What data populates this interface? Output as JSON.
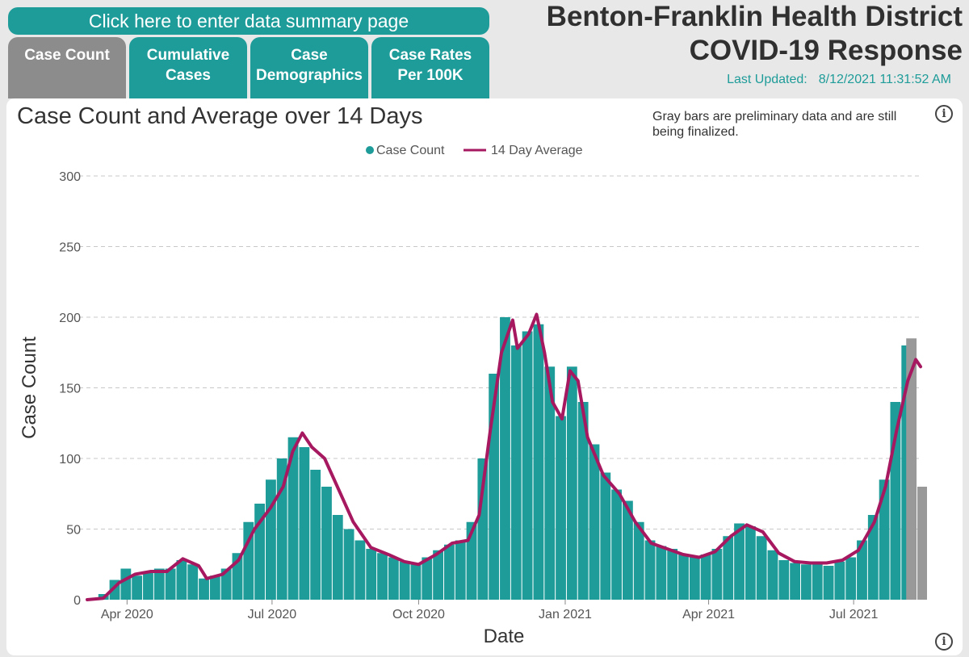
{
  "summary_button": "Click here to enter data summary page",
  "tabs": [
    {
      "label": "Case Count",
      "active": true
    },
    {
      "label": "Cumulative\nCases",
      "active": false
    },
    {
      "label": "Case\nDemographics",
      "active": false
    },
    {
      "label": "Case Rates\nPer 100K",
      "active": false
    }
  ],
  "header": {
    "line1": "Benton-Franklin Health District",
    "line2": "COVID-19 Response",
    "last_updated_label": "Last Updated:",
    "last_updated_value": "8/12/2021 11:31:52 AM"
  },
  "note": "Gray bars are preliminary data and are still being finalized.",
  "colors": {
    "accent": "#1e9c99",
    "bar": "#1e9c99",
    "preliminary_bar": "#999999",
    "average_line": "#a6185f",
    "active_tab": "#8c8c8c"
  },
  "icons": [
    "info-icon"
  ],
  "chart_data": {
    "type": "bar",
    "title": "Case Count and Average over 14 Days",
    "xlabel": "Date",
    "ylabel": "Case Count",
    "ylim": [
      0,
      300
    ],
    "yticks": [
      0,
      50,
      100,
      150,
      200,
      250,
      300
    ],
    "grid": true,
    "legend_position": "top",
    "x_range": [
      "2020-03-07",
      "2021-08-12"
    ],
    "x_ticks": [
      {
        "label": "Apr 2020",
        "date": "2020-04-01"
      },
      {
        "label": "Jul 2020",
        "date": "2020-07-01"
      },
      {
        "label": "Oct 2020",
        "date": "2020-10-01"
      },
      {
        "label": "Jan 2021",
        "date": "2021-01-01"
      },
      {
        "label": "Apr 2021",
        "date": "2021-04-01"
      },
      {
        "label": "Jul 2021",
        "date": "2021-07-01"
      }
    ],
    "series": [
      {
        "name": "Case Count",
        "kind": "bar",
        "weekly_average": [
          {
            "week_start": "2020-03-07",
            "value": 1
          },
          {
            "week_start": "2020-03-14",
            "value": 4
          },
          {
            "week_start": "2020-03-21",
            "value": 14
          },
          {
            "week_start": "2020-03-28",
            "value": 22
          },
          {
            "week_start": "2020-04-04",
            "value": 17
          },
          {
            "week_start": "2020-04-11",
            "value": 20
          },
          {
            "week_start": "2020-04-18",
            "value": 22
          },
          {
            "week_start": "2020-04-25",
            "value": 22
          },
          {
            "week_start": "2020-05-02",
            "value": 28
          },
          {
            "week_start": "2020-05-09",
            "value": 25
          },
          {
            "week_start": "2020-05-16",
            "value": 15
          },
          {
            "week_start": "2020-05-23",
            "value": 17
          },
          {
            "week_start": "2020-05-30",
            "value": 22
          },
          {
            "week_start": "2020-06-06",
            "value": 33
          },
          {
            "week_start": "2020-06-13",
            "value": 55
          },
          {
            "week_start": "2020-06-20",
            "value": 68
          },
          {
            "week_start": "2020-06-27",
            "value": 85
          },
          {
            "week_start": "2020-07-04",
            "value": 100
          },
          {
            "week_start": "2020-07-11",
            "value": 115
          },
          {
            "week_start": "2020-07-18",
            "value": 108
          },
          {
            "week_start": "2020-07-25",
            "value": 92
          },
          {
            "week_start": "2020-08-01",
            "value": 80
          },
          {
            "week_start": "2020-08-08",
            "value": 60
          },
          {
            "week_start": "2020-08-15",
            "value": 50
          },
          {
            "week_start": "2020-08-22",
            "value": 42
          },
          {
            "week_start": "2020-08-29",
            "value": 36
          },
          {
            "week_start": "2020-09-05",
            "value": 33
          },
          {
            "week_start": "2020-09-12",
            "value": 30
          },
          {
            "week_start": "2020-09-19",
            "value": 27
          },
          {
            "week_start": "2020-09-26",
            "value": 26
          },
          {
            "week_start": "2020-10-03",
            "value": 30
          },
          {
            "week_start": "2020-10-10",
            "value": 35
          },
          {
            "week_start": "2020-10-17",
            "value": 39
          },
          {
            "week_start": "2020-10-24",
            "value": 42
          },
          {
            "week_start": "2020-10-31",
            "value": 55
          },
          {
            "week_start": "2020-11-07",
            "value": 100
          },
          {
            "week_start": "2020-11-14",
            "value": 160
          },
          {
            "week_start": "2020-11-21",
            "value": 200
          },
          {
            "week_start": "2020-11-28",
            "value": 180
          },
          {
            "week_start": "2020-12-05",
            "value": 190
          },
          {
            "week_start": "2020-12-12",
            "value": 195
          },
          {
            "week_start": "2020-12-19",
            "value": 165
          },
          {
            "week_start": "2020-12-26",
            "value": 130
          },
          {
            "week_start": "2021-01-02",
            "value": 165
          },
          {
            "week_start": "2021-01-09",
            "value": 140
          },
          {
            "week_start": "2021-01-16",
            "value": 110
          },
          {
            "week_start": "2021-01-23",
            "value": 90
          },
          {
            "week_start": "2021-01-30",
            "value": 78
          },
          {
            "week_start": "2021-02-06",
            "value": 70
          },
          {
            "week_start": "2021-02-13",
            "value": 55
          },
          {
            "week_start": "2021-02-20",
            "value": 42
          },
          {
            "week_start": "2021-02-27",
            "value": 38
          },
          {
            "week_start": "2021-03-06",
            "value": 36
          },
          {
            "week_start": "2021-03-13",
            "value": 32
          },
          {
            "week_start": "2021-03-20",
            "value": 30
          },
          {
            "week_start": "2021-03-27",
            "value": 32
          },
          {
            "week_start": "2021-04-03",
            "value": 36
          },
          {
            "week_start": "2021-04-10",
            "value": 45
          },
          {
            "week_start": "2021-04-17",
            "value": 54
          },
          {
            "week_start": "2021-04-24",
            "value": 52
          },
          {
            "week_start": "2021-05-01",
            "value": 45
          },
          {
            "week_start": "2021-05-08",
            "value": 35
          },
          {
            "week_start": "2021-05-15",
            "value": 28
          },
          {
            "week_start": "2021-05-22",
            "value": 26
          },
          {
            "week_start": "2021-05-29",
            "value": 25
          },
          {
            "week_start": "2021-06-05",
            "value": 26
          },
          {
            "week_start": "2021-06-12",
            "value": 24
          },
          {
            "week_start": "2021-06-19",
            "value": 27
          },
          {
            "week_start": "2021-06-26",
            "value": 30
          },
          {
            "week_start": "2021-07-03",
            "value": 42
          },
          {
            "week_start": "2021-07-10",
            "value": 60
          },
          {
            "week_start": "2021-07-17",
            "value": 85
          },
          {
            "week_start": "2021-07-24",
            "value": 140
          },
          {
            "week_start": "2021-07-31",
            "value": 180
          }
        ],
        "preliminary_weekly_average": [
          {
            "week_start": "2021-08-03",
            "value": 185
          },
          {
            "week_start": "2021-08-10",
            "value": 80
          }
        ]
      },
      {
        "name": "14 Day Average",
        "kind": "line",
        "points": [
          {
            "date": "2020-03-07",
            "value": 0
          },
          {
            "date": "2020-03-17",
            "value": 1
          },
          {
            "date": "2020-03-27",
            "value": 12
          },
          {
            "date": "2020-04-06",
            "value": 18
          },
          {
            "date": "2020-04-16",
            "value": 20
          },
          {
            "date": "2020-04-26",
            "value": 20
          },
          {
            "date": "2020-05-06",
            "value": 29
          },
          {
            "date": "2020-05-16",
            "value": 24
          },
          {
            "date": "2020-05-21",
            "value": 15
          },
          {
            "date": "2020-05-31",
            "value": 18
          },
          {
            "date": "2020-06-10",
            "value": 28
          },
          {
            "date": "2020-06-20",
            "value": 50
          },
          {
            "date": "2020-06-30",
            "value": 65
          },
          {
            "date": "2020-07-08",
            "value": 80
          },
          {
            "date": "2020-07-14",
            "value": 105
          },
          {
            "date": "2020-07-20",
            "value": 118
          },
          {
            "date": "2020-07-26",
            "value": 108
          },
          {
            "date": "2020-08-03",
            "value": 100
          },
          {
            "date": "2020-08-11",
            "value": 80
          },
          {
            "date": "2020-08-21",
            "value": 55
          },
          {
            "date": "2020-09-01",
            "value": 37
          },
          {
            "date": "2020-09-12",
            "value": 32
          },
          {
            "date": "2020-09-22",
            "value": 27
          },
          {
            "date": "2020-10-01",
            "value": 25
          },
          {
            "date": "2020-10-12",
            "value": 32
          },
          {
            "date": "2020-10-22",
            "value": 40
          },
          {
            "date": "2020-11-01",
            "value": 42
          },
          {
            "date": "2020-11-08",
            "value": 60
          },
          {
            "date": "2020-11-15",
            "value": 120
          },
          {
            "date": "2020-11-22",
            "value": 175
          },
          {
            "date": "2020-11-29",
            "value": 198
          },
          {
            "date": "2020-12-02",
            "value": 178
          },
          {
            "date": "2020-12-09",
            "value": 188
          },
          {
            "date": "2020-12-14",
            "value": 202
          },
          {
            "date": "2020-12-19",
            "value": 175
          },
          {
            "date": "2020-12-24",
            "value": 140
          },
          {
            "date": "2020-12-30",
            "value": 128
          },
          {
            "date": "2021-01-04",
            "value": 162
          },
          {
            "date": "2021-01-09",
            "value": 155
          },
          {
            "date": "2021-01-15",
            "value": 115
          },
          {
            "date": "2021-01-25",
            "value": 88
          },
          {
            "date": "2021-02-04",
            "value": 75
          },
          {
            "date": "2021-02-14",
            "value": 55
          },
          {
            "date": "2021-02-24",
            "value": 40
          },
          {
            "date": "2021-03-06",
            "value": 36
          },
          {
            "date": "2021-03-16",
            "value": 32
          },
          {
            "date": "2021-03-26",
            "value": 30
          },
          {
            "date": "2021-04-05",
            "value": 34
          },
          {
            "date": "2021-04-15",
            "value": 45
          },
          {
            "date": "2021-04-25",
            "value": 53
          },
          {
            "date": "2021-05-05",
            "value": 48
          },
          {
            "date": "2021-05-15",
            "value": 33
          },
          {
            "date": "2021-05-25",
            "value": 27
          },
          {
            "date": "2021-06-04",
            "value": 26
          },
          {
            "date": "2021-06-14",
            "value": 26
          },
          {
            "date": "2021-06-24",
            "value": 28
          },
          {
            "date": "2021-07-04",
            "value": 35
          },
          {
            "date": "2021-07-14",
            "value": 55
          },
          {
            "date": "2021-07-21",
            "value": 80
          },
          {
            "date": "2021-07-28",
            "value": 120
          },
          {
            "date": "2021-08-04",
            "value": 155
          },
          {
            "date": "2021-08-09",
            "value": 170
          },
          {
            "date": "2021-08-12",
            "value": 165
          }
        ]
      }
    ]
  }
}
